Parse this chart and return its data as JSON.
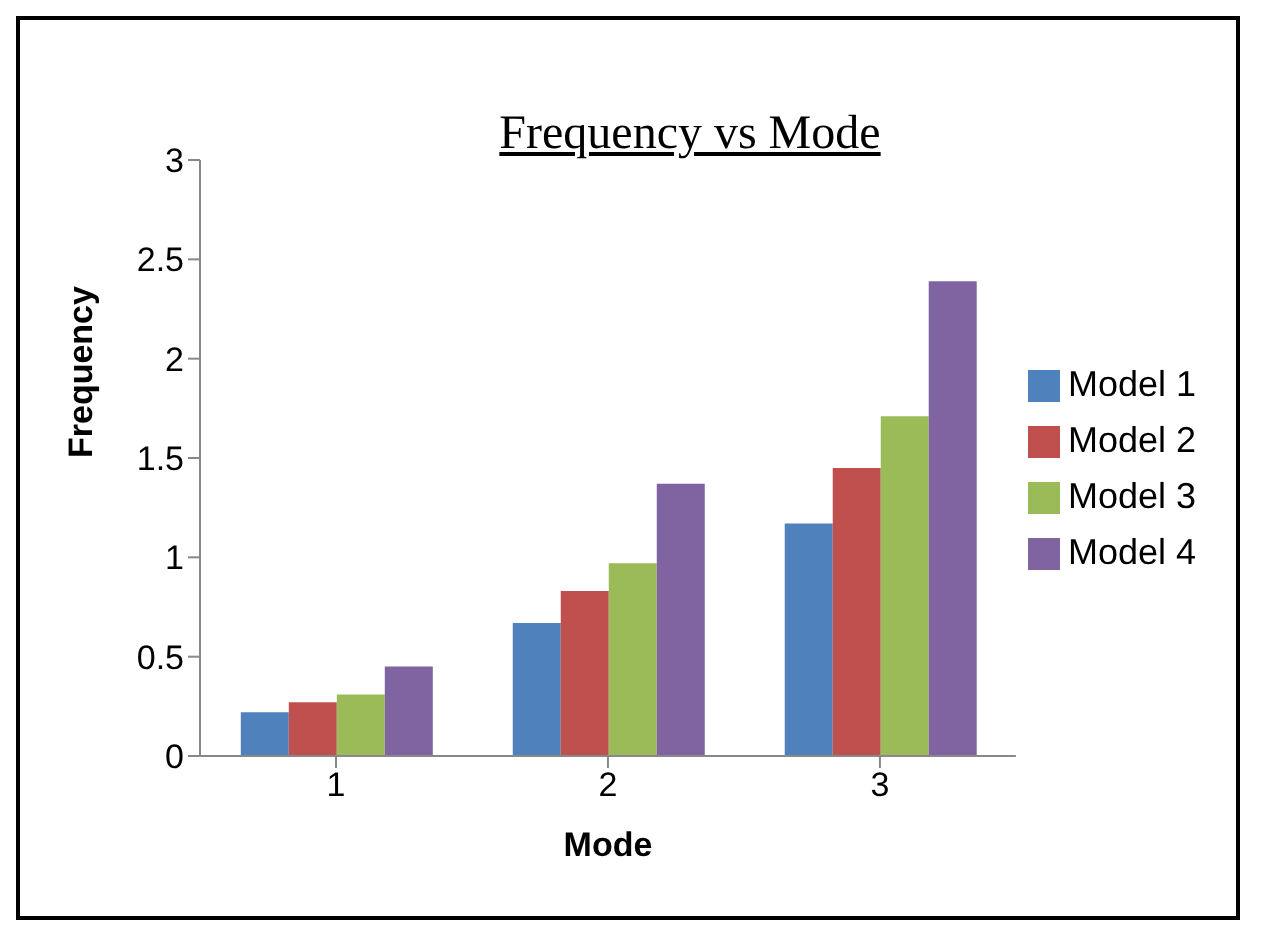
{
  "chart_data": {
    "type": "bar",
    "title": "Frequency vs Mode",
    "xlabel": "Mode",
    "ylabel": "Frequency",
    "categories": [
      "1",
      "2",
      "3"
    ],
    "series": [
      {
        "name": "Model 1",
        "color": "#4f81bd",
        "values": [
          0.22,
          0.67,
          1.17
        ]
      },
      {
        "name": "Model 2",
        "color": "#c0504d",
        "values": [
          0.27,
          0.83,
          1.45
        ]
      },
      {
        "name": "Model 3",
        "color": "#9bbb59",
        "values": [
          0.31,
          0.97,
          1.71
        ]
      },
      {
        "name": "Model 4",
        "color": "#8064a2",
        "values": [
          0.45,
          1.37,
          2.39
        ]
      }
    ],
    "ylim": [
      0,
      3
    ],
    "yticks": [
      0,
      0.5,
      1,
      1.5,
      2,
      2.5,
      3
    ],
    "grid": false,
    "legend": "right"
  }
}
